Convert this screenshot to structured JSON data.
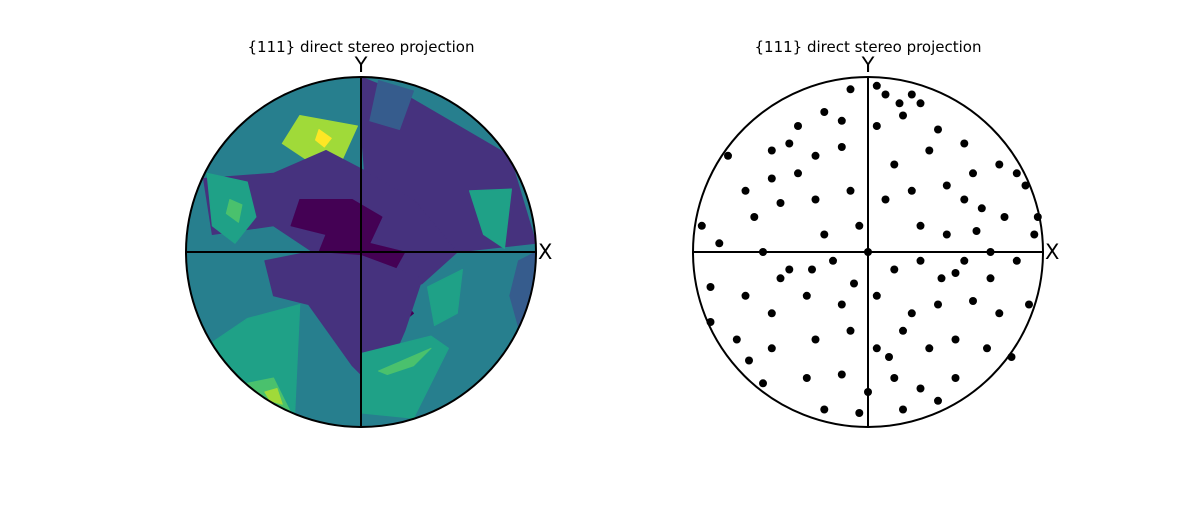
{
  "chart_data": [
    {
      "type": "contour",
      "title": "{111} direct stereo projection",
      "axis_labels": {
        "x": "X",
        "y": "Y"
      },
      "colormap": [
        "#440154",
        "#46327e",
        "#365c8d",
        "#277f8e",
        "#1fa187",
        "#4ac16d",
        "#a0da39",
        "#fde725"
      ],
      "background_level": 3,
      "regions": [
        {
          "name": "top-left-high",
          "level": 6,
          "points": [
            [
              -0.35,
              0.78
            ],
            [
              -0.02,
              0.72
            ],
            [
              -0.12,
              0.5
            ],
            [
              -0.3,
              0.52
            ],
            [
              -0.45,
              0.62
            ]
          ]
        },
        {
          "name": "top-left-peak-ring",
          "level": 6,
          "points": [
            [
              -0.25,
              0.74
            ],
            [
              -0.1,
              0.65
            ],
            [
              -0.18,
              0.55
            ],
            [
              -0.3,
              0.6
            ]
          ]
        },
        {
          "name": "top-left-peak",
          "level": 7,
          "points": [
            [
              -0.24,
              0.7
            ],
            [
              -0.17,
              0.65
            ],
            [
              -0.21,
              0.6
            ],
            [
              -0.26,
              0.64
            ]
          ]
        },
        {
          "name": "top-right-low",
          "level": 1,
          "points": [
            [
              0.0,
              1.0
            ],
            [
              0.25,
              0.9
            ],
            [
              0.85,
              0.55
            ],
            [
              1.0,
              0.05
            ],
            [
              0.55,
              0.0
            ],
            [
              0.3,
              0.3
            ],
            [
              0.05,
              0.1
            ],
            [
              0.0,
              0.7
            ]
          ]
        },
        {
          "name": "top-right-low-inner",
          "level": 2,
          "points": [
            [
              0.1,
              0.98
            ],
            [
              0.3,
              0.92
            ],
            [
              0.22,
              0.7
            ],
            [
              0.05,
              0.75
            ]
          ]
        },
        {
          "name": "center-upper",
          "level": 1,
          "points": [
            [
              -0.9,
              0.42
            ],
            [
              -0.5,
              0.45
            ],
            [
              -0.2,
              0.58
            ],
            [
              0.05,
              0.45
            ],
            [
              0.3,
              0.3
            ],
            [
              0.55,
              0.0
            ],
            [
              0.35,
              -0.18
            ],
            [
              0.05,
              -0.3
            ],
            [
              -0.2,
              -0.05
            ],
            [
              -0.5,
              0.15
            ],
            [
              -0.85,
              0.1
            ]
          ]
        },
        {
          "name": "center-core",
          "level": 0,
          "points": [
            [
              -0.35,
              0.3
            ],
            [
              -0.05,
              0.3
            ],
            [
              0.12,
              0.2
            ],
            [
              0.05,
              0.05
            ],
            [
              0.25,
              0.0
            ],
            [
              0.15,
              -0.18
            ],
            [
              0.3,
              -0.35
            ],
            [
              0.05,
              -0.55
            ],
            [
              0.1,
              -0.78
            ],
            [
              -0.1,
              -0.45
            ],
            [
              -0.3,
              -0.15
            ],
            [
              -0.2,
              0.1
            ],
            [
              -0.4,
              0.15
            ]
          ]
        },
        {
          "name": "center-lower",
          "level": 1,
          "points": [
            [
              -0.55,
              -0.05
            ],
            [
              -0.3,
              0.0
            ],
            [
              0.0,
              -0.02
            ],
            [
              0.35,
              -0.15
            ],
            [
              0.25,
              -0.45
            ],
            [
              0.1,
              -0.8
            ],
            [
              -0.05,
              -0.65
            ],
            [
              -0.3,
              -0.3
            ],
            [
              -0.5,
              -0.25
            ]
          ]
        },
        {
          "name": "left-band",
          "level": 4,
          "points": [
            [
              -0.88,
              0.45
            ],
            [
              -0.65,
              0.4
            ],
            [
              -0.6,
              0.2
            ],
            [
              -0.72,
              0.05
            ],
            [
              -0.85,
              0.15
            ]
          ]
        },
        {
          "name": "left-band-inner",
          "level": 5,
          "points": [
            [
              -0.75,
              0.3
            ],
            [
              -0.68,
              0.27
            ],
            [
              -0.7,
              0.17
            ],
            [
              -0.77,
              0.22
            ]
          ]
        },
        {
          "name": "right-high",
          "level": 4,
          "points": [
            [
              0.62,
              0.35
            ],
            [
              0.86,
              0.36
            ],
            [
              0.82,
              0.02
            ],
            [
              0.7,
              0.1
            ]
          ]
        },
        {
          "name": "right-mid",
          "level": 4,
          "points": [
            [
              0.38,
              -0.2
            ],
            [
              0.58,
              -0.1
            ],
            [
              0.55,
              -0.35
            ],
            [
              0.42,
              -0.42
            ]
          ]
        },
        {
          "name": "bottom-left",
          "level": 4,
          "points": [
            [
              -0.9,
              -0.55
            ],
            [
              -0.65,
              -0.38
            ],
            [
              -0.35,
              -0.3
            ],
            [
              -0.38,
              -0.95
            ],
            [
              -0.7,
              -0.75
            ]
          ]
        },
        {
          "name": "bottom-left-inner",
          "level": 5,
          "points": [
            [
              -0.65,
              -0.75
            ],
            [
              -0.5,
              -0.72
            ],
            [
              -0.4,
              -0.92
            ],
            [
              -0.55,
              -0.88
            ]
          ]
        },
        {
          "name": "bottom-left-peak",
          "level": 6,
          "points": [
            [
              -0.55,
              -0.8
            ],
            [
              -0.48,
              -0.78
            ],
            [
              -0.45,
              -0.87
            ],
            [
              -0.52,
              -0.85
            ]
          ]
        },
        {
          "name": "bottom-center",
          "level": 4,
          "points": [
            [
              0.0,
              -0.58
            ],
            [
              0.4,
              -0.48
            ],
            [
              0.5,
              -0.55
            ],
            [
              0.3,
              -0.95
            ],
            [
              0.0,
              -0.92
            ]
          ]
        },
        {
          "name": "bottom-center-inner",
          "level": 5,
          "points": [
            [
              0.1,
              -0.68
            ],
            [
              0.4,
              -0.55
            ],
            [
              0.3,
              -0.65
            ],
            [
              0.15,
              -0.7
            ]
          ]
        },
        {
          "name": "right-edge-low",
          "level": 2,
          "points": [
            [
              0.9,
              -0.05
            ],
            [
              1.0,
              0.0
            ],
            [
              0.98,
              -0.4
            ],
            [
              0.92,
              -0.5
            ],
            [
              0.85,
              -0.25
            ]
          ]
        }
      ]
    },
    {
      "type": "scatter",
      "title": "{111} direct stereo projection",
      "axis_labels": {
        "x": "X",
        "y": "Y"
      },
      "marker_color": "#000000",
      "points": [
        [
          0.05,
          0.95
        ],
        [
          0.1,
          0.9
        ],
        [
          0.25,
          0.9
        ],
        [
          0.3,
          0.85
        ],
        [
          -0.1,
          0.93
        ],
        [
          -0.25,
          0.8
        ],
        [
          0.2,
          0.78
        ],
        [
          -0.4,
          0.72
        ],
        [
          -0.55,
          0.58
        ],
        [
          -0.3,
          0.55
        ],
        [
          -0.15,
          0.6
        ],
        [
          0.05,
          0.72
        ],
        [
          0.4,
          0.7
        ],
        [
          0.55,
          0.62
        ],
        [
          0.35,
          0.58
        ],
        [
          0.6,
          0.45
        ],
        [
          0.75,
          0.5
        ],
        [
          0.85,
          0.45
        ],
        [
          0.9,
          0.38
        ],
        [
          -0.7,
          0.35
        ],
        [
          -0.65,
          0.2
        ],
        [
          -0.5,
          0.28
        ],
        [
          -0.3,
          0.3
        ],
        [
          -0.1,
          0.35
        ],
        [
          0.1,
          0.3
        ],
        [
          0.25,
          0.35
        ],
        [
          0.45,
          0.38
        ],
        [
          0.55,
          0.3
        ],
        [
          0.65,
          0.25
        ],
        [
          0.78,
          0.2
        ],
        [
          0.95,
          0.1
        ],
        [
          -0.85,
          0.05
        ],
        [
          -0.6,
          0.0
        ],
        [
          -0.45,
          -0.1
        ],
        [
          -0.2,
          -0.05
        ],
        [
          0.0,
          0.0
        ],
        [
          0.15,
          -0.1
        ],
        [
          0.3,
          -0.05
        ],
        [
          0.5,
          -0.12
        ],
        [
          0.7,
          0.0
        ],
        [
          0.85,
          -0.05
        ],
        [
          -0.9,
          -0.2
        ],
        [
          -0.7,
          -0.25
        ],
        [
          -0.55,
          -0.35
        ],
        [
          -0.35,
          -0.25
        ],
        [
          -0.15,
          -0.3
        ],
        [
          0.05,
          -0.25
        ],
        [
          0.25,
          -0.35
        ],
        [
          0.4,
          -0.3
        ],
        [
          0.6,
          -0.28
        ],
        [
          0.75,
          -0.35
        ],
        [
          -0.75,
          -0.5
        ],
        [
          -0.55,
          -0.55
        ],
        [
          -0.3,
          -0.5
        ],
        [
          -0.1,
          -0.45
        ],
        [
          0.05,
          -0.55
        ],
        [
          0.2,
          -0.45
        ],
        [
          0.35,
          -0.55
        ],
        [
          0.5,
          -0.5
        ],
        [
          0.68,
          -0.55
        ],
        [
          -0.6,
          -0.75
        ],
        [
          -0.35,
          -0.72
        ],
        [
          -0.15,
          -0.7
        ],
        [
          0.0,
          -0.8
        ],
        [
          0.15,
          -0.72
        ],
        [
          0.3,
          -0.78
        ],
        [
          0.5,
          -0.72
        ],
        [
          -0.25,
          -0.9
        ],
        [
          -0.05,
          -0.92
        ],
        [
          0.2,
          -0.9
        ],
        [
          0.4,
          -0.85
        ],
        [
          -0.8,
          0.55
        ],
        [
          -0.95,
          0.15
        ],
        [
          -0.9,
          -0.4
        ],
        [
          0.92,
          -0.3
        ],
        [
          0.97,
          0.2
        ],
        [
          0.7,
          -0.15
        ],
        [
          -0.4,
          0.45
        ],
        [
          0.15,
          0.5
        ],
        [
          -0.05,
          0.15
        ],
        [
          0.45,
          0.1
        ],
        [
          -0.25,
          0.1
        ],
        [
          -0.5,
          -0.15
        ],
        [
          0.55,
          -0.05
        ],
        [
          -0.15,
          0.75
        ],
        [
          0.12,
          -0.6
        ],
        [
          -0.45,
          0.62
        ],
        [
          0.3,
          0.15
        ],
        [
          -0.68,
          -0.62
        ],
        [
          0.62,
          0.12
        ],
        [
          -0.08,
          -0.18
        ],
        [
          0.82,
          -0.6
        ],
        [
          -0.32,
          -0.1
        ],
        [
          0.18,
          0.85
        ],
        [
          -0.55,
          0.42
        ],
        [
          0.42,
          -0.15
        ]
      ]
    }
  ]
}
